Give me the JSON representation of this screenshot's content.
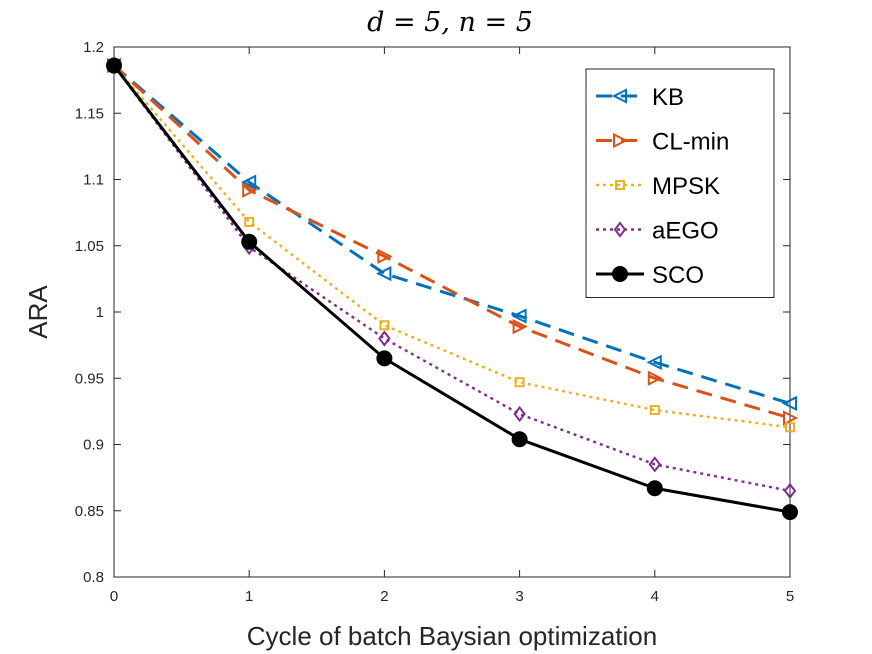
{
  "chart_data": {
    "type": "line",
    "title": "d = 5, n = 5",
    "xlabel": "Cycle of batch Baysian optimization",
    "ylabel": "ARA",
    "x": [
      0,
      1,
      2,
      3,
      4,
      5
    ],
    "xlim": [
      0,
      5
    ],
    "ylim": [
      0.8,
      1.2
    ],
    "xticks": [
      "0",
      "1",
      "2",
      "3",
      "4",
      "5"
    ],
    "yticks": [
      "0.8",
      "0.85",
      "0.9",
      "0.95",
      "1",
      "1.05",
      "1.1",
      "1.15",
      "1.2"
    ],
    "grid": false,
    "legend_position": "top-right",
    "series": [
      {
        "name": "KB",
        "values": [
          1.186,
          1.098,
          1.029,
          0.997,
          0.962,
          0.931
        ],
        "color": "#0072BD",
        "dash": "dashed",
        "marker": "triangle-left"
      },
      {
        "name": "CL-min",
        "values": [
          1.186,
          1.092,
          1.042,
          0.989,
          0.95,
          0.92
        ],
        "color": "#D95319",
        "dash": "dashed",
        "marker": "triangle-right"
      },
      {
        "name": "MPSK",
        "values": [
          1.186,
          1.068,
          0.99,
          0.947,
          0.926,
          0.913
        ],
        "color": "#EDB120",
        "dash": "dotted",
        "marker": "square"
      },
      {
        "name": "aEGO",
        "values": [
          1.186,
          1.049,
          0.98,
          0.923,
          0.885,
          0.865
        ],
        "color": "#7E2F8E",
        "dash": "dotted",
        "marker": "diamond"
      },
      {
        "name": "SCO",
        "values": [
          1.186,
          1.053,
          0.965,
          0.904,
          0.867,
          0.849
        ],
        "color": "#000000",
        "dash": "solid",
        "marker": "circle"
      }
    ]
  }
}
